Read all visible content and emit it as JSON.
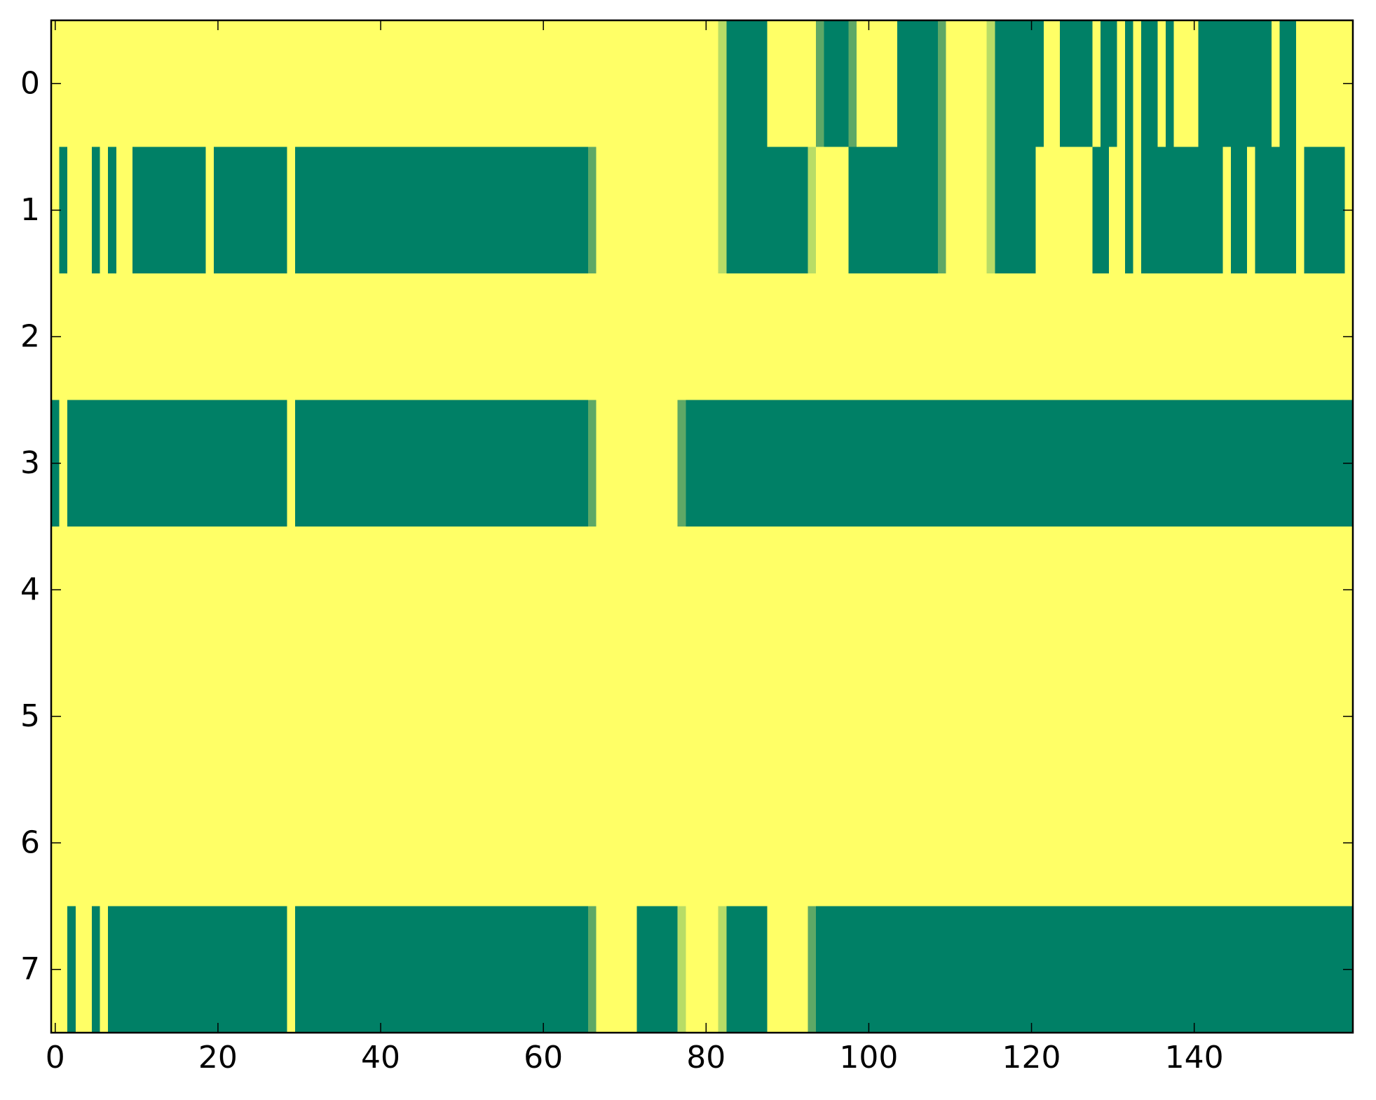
{
  "chart_data": {
    "type": "heatmap",
    "title": "",
    "xlabel": "",
    "ylabel": "",
    "colormap": "summer_r",
    "colors": {
      "low": "#ffff66",
      "high": "#008066",
      "edge_light": "#b8dc66",
      "edge_mid": "#5ea866"
    },
    "xlim": [
      -0.5,
      159.5
    ],
    "ylim": [
      7.5,
      -0.5
    ],
    "x_ticks": [
      0,
      20,
      40,
      60,
      80,
      100,
      120,
      140
    ],
    "x_tick_labels": [
      "0",
      "20",
      "40",
      "60",
      "80",
      "100",
      "120",
      "140"
    ],
    "y_ticks": [
      0,
      1,
      2,
      3,
      4,
      5,
      6,
      7
    ],
    "y_tick_labels": [
      "0",
      "1",
      "2",
      "3",
      "4",
      "5",
      "6",
      "7"
    ],
    "n_columns": 160,
    "rows": [
      {
        "row": 0,
        "high_runs": [
          [
            82,
            87
          ],
          [
            94,
            97
          ],
          [
            104,
            108
          ],
          [
            115,
            121
          ],
          [
            124,
            127
          ],
          [
            129,
            130
          ],
          [
            132,
            132
          ],
          [
            134,
            135
          ],
          [
            137,
            137
          ],
          [
            141,
            149
          ],
          [
            151,
            152
          ]
        ],
        "light_edge_cols": [
          82,
          115
        ],
        "mid_edge_cols": [
          94,
          98,
          109
        ]
      },
      {
        "row": 1,
        "high_runs": [
          [
            1,
            1
          ],
          [
            5,
            5
          ],
          [
            7,
            7
          ],
          [
            10,
            18
          ],
          [
            20,
            28
          ],
          [
            30,
            66
          ],
          [
            82,
            92
          ],
          [
            98,
            108
          ],
          [
            115,
            120
          ],
          [
            128,
            129
          ],
          [
            132,
            132
          ],
          [
            134,
            143
          ],
          [
            145,
            146
          ],
          [
            148,
            152
          ],
          [
            154,
            158
          ]
        ],
        "light_edge_cols": [
          82,
          93,
          115
        ],
        "mid_edge_cols": [
          66,
          109
        ]
      },
      {
        "row": 2,
        "high_runs": [],
        "light_edge_cols": [],
        "mid_edge_cols": []
      },
      {
        "row": 3,
        "high_runs": [
          [
            -0.5,
            0
          ],
          [
            2,
            28
          ],
          [
            30,
            66
          ],
          [
            77,
            159
          ]
        ],
        "light_edge_cols": [],
        "mid_edge_cols": [
          66,
          77
        ]
      },
      {
        "row": 4,
        "high_runs": [],
        "light_edge_cols": [],
        "mid_edge_cols": []
      },
      {
        "row": 5,
        "high_runs": [],
        "light_edge_cols": [],
        "mid_edge_cols": []
      },
      {
        "row": 6,
        "high_runs": [],
        "light_edge_cols": [],
        "mid_edge_cols": []
      },
      {
        "row": 7,
        "high_runs": [
          [
            2,
            2
          ],
          [
            5,
            5
          ],
          [
            7,
            28
          ],
          [
            30,
            66
          ],
          [
            72,
            76
          ],
          [
            82,
            87
          ],
          [
            93,
            159
          ]
        ],
        "light_edge_cols": [
          77,
          82
        ],
        "mid_edge_cols": [
          66,
          93
        ]
      }
    ]
  }
}
